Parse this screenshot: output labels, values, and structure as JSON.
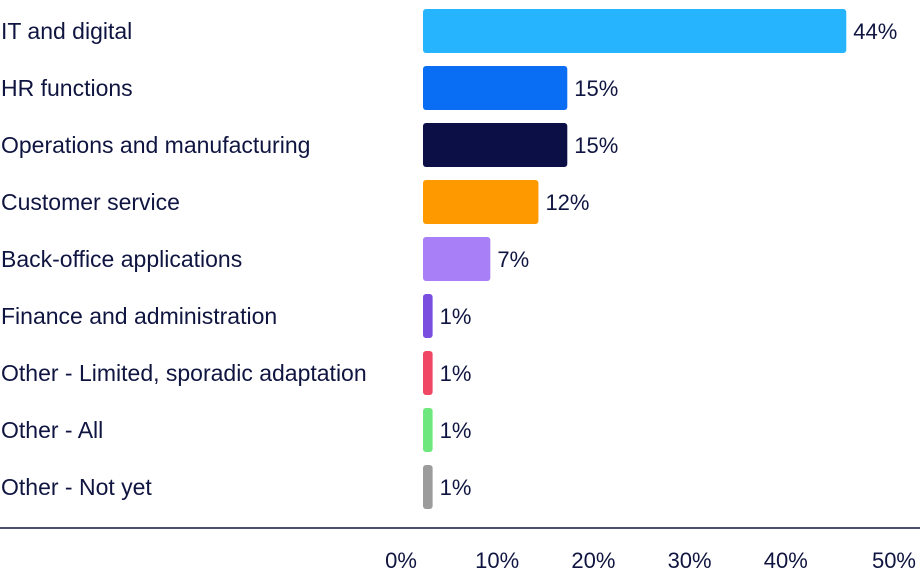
{
  "chart_data": {
    "type": "bar",
    "orientation": "horizontal",
    "categories": [
      "IT and digital",
      "HR functions",
      "Operations and manufacturing",
      "Customer service",
      "Back-office applications",
      "Finance and administration",
      "Other - Limited, sporadic adaptation",
      "Other - All",
      "Other - Not yet"
    ],
    "values": [
      44,
      15,
      15,
      12,
      7,
      1,
      1,
      1,
      1
    ],
    "value_labels": [
      "44%",
      "15%",
      "15%",
      "12%",
      "7%",
      "1%",
      "1%",
      "1%",
      "1%"
    ],
    "colors": [
      "#26b4ff",
      "#0a6ef5",
      "#0b0f45",
      "#ff9900",
      "#a87ff7",
      "#7a4fe0",
      "#f04864",
      "#6ee87c",
      "#9c9c9c"
    ],
    "xlim": [
      0,
      50
    ],
    "ticks": [
      "0%",
      "10%",
      "20%",
      "30%",
      "40%",
      "50%"
    ],
    "tick_values": [
      0,
      10,
      20,
      30,
      40,
      50
    ],
    "grid": false,
    "legend": "none"
  }
}
